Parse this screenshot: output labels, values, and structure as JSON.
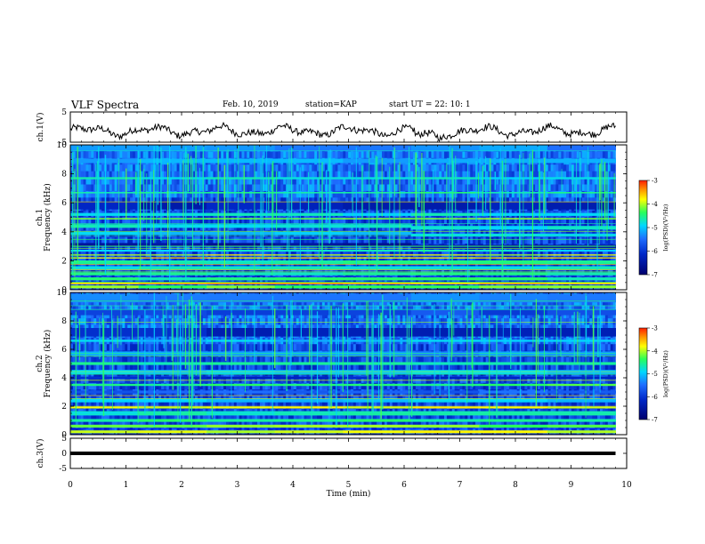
{
  "header": {
    "title": "VLF Spectra",
    "date": "Feb. 10, 2019",
    "station": "station=KAP",
    "start": "start  UT =   22: 10: 1"
  },
  "chart_data": [
    {
      "type": "line",
      "panel": "ch1-waveform",
      "ylabel": "ch.1(V)",
      "ylim": [
        -5,
        5
      ],
      "yticks": [
        "5",
        "-5"
      ],
      "xlim": [
        0,
        10
      ],
      "description_values": "noisy waveform fluctuating between about -4.5 and 1.5 V"
    },
    {
      "type": "heatmap",
      "panel": "ch1-spectrogram",
      "ylabel": "ch.1\nFrequency (kHz)",
      "ylabel_line1": "ch.1",
      "ylabel_line2": "Frequency  (kHz)",
      "ylim": [
        0,
        10
      ],
      "yticks": [
        "0",
        "2",
        "4",
        "6",
        "8",
        "10"
      ],
      "xlim": [
        0,
        10
      ],
      "colorbar": {
        "label": "log(PSD)(V²/Hz)",
        "range": [
          -7,
          -3
        ],
        "ticks": [
          "-3",
          "-4",
          "-5",
          "-6",
          "-7"
        ]
      }
    },
    {
      "type": "heatmap",
      "panel": "ch2-spectrogram",
      "ylabel_line1": "ch.2",
      "ylabel_line2": "Frequency  (kHz)",
      "ylim": [
        0,
        10
      ],
      "yticks": [
        "0",
        "2",
        "4",
        "6",
        "8",
        "10"
      ],
      "xlim": [
        0,
        10
      ],
      "colorbar": {
        "label": "log(PSD)(V²/Hz)",
        "range": [
          -7,
          -3
        ],
        "ticks": [
          "-3",
          "-4",
          "-5",
          "-6",
          "-7"
        ]
      }
    },
    {
      "type": "line",
      "panel": "ch3-waveform",
      "ylabel": "ch.3(V)",
      "ylim": [
        -5,
        5
      ],
      "yticks": [
        "5",
        "0",
        "-5"
      ],
      "xlim": [
        0,
        10
      ],
      "values_constant": 0
    }
  ],
  "xaxis": {
    "label": "Time  (min)",
    "ticks": [
      "0",
      "1",
      "2",
      "3",
      "4",
      "5",
      "6",
      "7",
      "8",
      "9",
      "10"
    ],
    "data_end": 9.8
  },
  "colors": {
    "background": "#ffffff",
    "axis": "#000000",
    "spec_dark": "#00007a",
    "spec_mid": "#1f5cff",
    "spec_cyan": "#00d8ff",
    "spec_green": "#20ff40",
    "spec_yellow": "#ffff00",
    "spec_red": "#ff2000"
  }
}
